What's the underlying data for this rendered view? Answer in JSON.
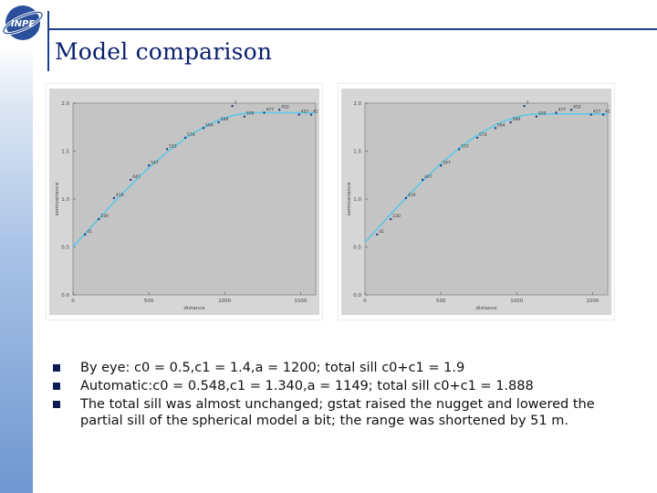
{
  "slide": {
    "title": "Model comparison",
    "colors": {
      "title": "#0a1f6e",
      "rule": "#1a3f8c",
      "sidebar": "#6f97d0",
      "plot_bg": "#bfbfbf",
      "curve": "#5bc8e6"
    }
  },
  "logo": {
    "text": "INPE"
  },
  "bullets": [
    {
      "lead": "By eye:",
      "text": " c0 = 0.5,c1 = 1.4,a = 1200; total sill c0+c1 = 1.9"
    },
    {
      "lead": "Automatic:",
      "text": "c0 = 0.548,c1 = 1.340,a = 1149; total sill c0+c1 = 1.888"
    },
    {
      "lead": "",
      "text": "The total sill was almost unchanged; gstat raised the nugget and lowered the partial sill of the spherical model a bit; the range was shortened by 51 m."
    }
  ],
  "chart_data": [
    {
      "type": "scatter",
      "xlabel": "distance",
      "ylabel": "semivariance",
      "xlim": [
        0,
        1600
      ],
      "ylim": [
        0,
        2.0
      ],
      "x_ticks": [
        "0",
        "500",
        "1000",
        "1500"
      ],
      "y_ticks": [
        "0.0",
        "0.5",
        "1.0",
        "1.5",
        "2.0"
      ],
      "points": [
        {
          "x": 80,
          "y": 0.63,
          "label": "41"
        },
        {
          "x": 170,
          "y": 0.79,
          "label": "230"
        },
        {
          "x": 270,
          "y": 1.01,
          "label": "419"
        },
        {
          "x": 380,
          "y": 1.2,
          "label": "447"
        },
        {
          "x": 500,
          "y": 1.35,
          "label": "547"
        },
        {
          "x": 620,
          "y": 1.52,
          "label": "533"
        },
        {
          "x": 740,
          "y": 1.64,
          "label": "574"
        },
        {
          "x": 860,
          "y": 1.74,
          "label": "564"
        },
        {
          "x": 960,
          "y": 1.8,
          "label": "589"
        },
        {
          "x": 1130,
          "y": 1.86,
          "label": "500"
        },
        {
          "x": 1260,
          "y": 1.9,
          "label": "477"
        },
        {
          "x": 1360,
          "y": 1.93,
          "label": "452"
        },
        {
          "x": 1490,
          "y": 1.88,
          "label": "457"
        },
        {
          "x": 1570,
          "y": 1.88,
          "label": "41"
        },
        {
          "x": 1050,
          "y": 1.97,
          "label": "7"
        }
      ],
      "model": {
        "type": "spherical",
        "nugget": 0.5,
        "psill": 1.4,
        "range": 1200
      },
      "grid": false
    },
    {
      "type": "scatter",
      "xlabel": "distance",
      "ylabel": "semivariance",
      "xlim": [
        0,
        1600
      ],
      "ylim": [
        0,
        2.0
      ],
      "x_ticks": [
        "0",
        "500",
        "1000",
        "1500"
      ],
      "y_ticks": [
        "0.0",
        "0.5",
        "1.0",
        "1.5",
        "2.0"
      ],
      "points": [
        {
          "x": 80,
          "y": 0.63,
          "label": "41"
        },
        {
          "x": 170,
          "y": 0.79,
          "label": "230"
        },
        {
          "x": 270,
          "y": 1.01,
          "label": "419"
        },
        {
          "x": 380,
          "y": 1.2,
          "label": "447"
        },
        {
          "x": 500,
          "y": 1.35,
          "label": "547"
        },
        {
          "x": 620,
          "y": 1.52,
          "label": "533"
        },
        {
          "x": 740,
          "y": 1.64,
          "label": "574"
        },
        {
          "x": 860,
          "y": 1.74,
          "label": "564"
        },
        {
          "x": 960,
          "y": 1.8,
          "label": "589"
        },
        {
          "x": 1130,
          "y": 1.86,
          "label": "500"
        },
        {
          "x": 1260,
          "y": 1.9,
          "label": "477"
        },
        {
          "x": 1360,
          "y": 1.93,
          "label": "452"
        },
        {
          "x": 1490,
          "y": 1.88,
          "label": "457"
        },
        {
          "x": 1570,
          "y": 1.88,
          "label": "41"
        },
        {
          "x": 1050,
          "y": 1.97,
          "label": "7"
        }
      ],
      "model": {
        "type": "spherical",
        "nugget": 0.548,
        "psill": 1.34,
        "range": 1149
      },
      "grid": false
    }
  ]
}
